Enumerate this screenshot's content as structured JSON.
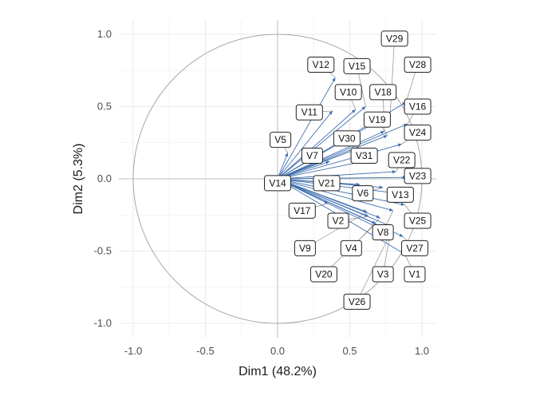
{
  "chart_data": {
    "type": "scatter",
    "subtype": "pca-variable-correlation-circle",
    "xlabel": "Dim1 (48.2%)",
    "ylabel": "Dim2 (5.3%)",
    "xlim": [
      -1.1,
      1.1
    ],
    "ylim": [
      -1.1,
      1.1
    ],
    "x_ticks": [
      -1.0,
      -0.5,
      0.0,
      0.5,
      1.0
    ],
    "y_ticks": [
      -1.0,
      -0.5,
      0.0,
      0.5,
      1.0
    ],
    "x_tick_labels": [
      "-1.0",
      "-0.5",
      "0.0",
      "0.5",
      "1.0"
    ],
    "y_tick_labels": [
      "-1.0",
      "-0.5",
      "0.0",
      "0.5",
      "1.0"
    ],
    "grid": true,
    "unit_circle": true,
    "arrow_color": "#3f6fb0",
    "circle_color": "#a6a6a6",
    "grid_color": "#ebebeb",
    "variables": [
      {
        "name": "V1",
        "x": 0.88,
        "y": -0.52,
        "label_x": 0.95,
        "label_y": -0.66
      },
      {
        "name": "V2",
        "x": 0.63,
        "y": -0.26,
        "label_x": 0.42,
        "label_y": -0.29
      },
      {
        "name": "V3",
        "x": 0.79,
        "y": -0.33,
        "label_x": 0.73,
        "label_y": -0.66
      },
      {
        "name": "V4",
        "x": 0.71,
        "y": -0.27,
        "label_x": 0.51,
        "label_y": -0.48
      },
      {
        "name": "V5",
        "x": 0.07,
        "y": 0.18,
        "label_x": 0.02,
        "label_y": 0.27
      },
      {
        "name": "V6",
        "x": 0.73,
        "y": -0.06,
        "label_x": 0.59,
        "label_y": -0.1
      },
      {
        "name": "V7",
        "x": 0.36,
        "y": 0.12,
        "label_x": 0.24,
        "label_y": 0.16
      },
      {
        "name": "V8",
        "x": 0.8,
        "y": -0.22,
        "label_x": 0.73,
        "label_y": -0.37
      },
      {
        "name": "V9",
        "x": 0.62,
        "y": -0.23,
        "label_x": 0.19,
        "label_y": -0.48
      },
      {
        "name": "V10",
        "x": 0.54,
        "y": 0.48,
        "label_x": 0.49,
        "label_y": 0.6
      },
      {
        "name": "V11",
        "x": 0.38,
        "y": 0.47,
        "label_x": 0.22,
        "label_y": 0.46
      },
      {
        "name": "V12",
        "x": 0.4,
        "y": 0.7,
        "label_x": 0.3,
        "label_y": 0.79
      },
      {
        "name": "V13",
        "x": 0.83,
        "y": -0.1,
        "label_x": 0.85,
        "label_y": -0.11
      },
      {
        "name": "V14",
        "x": 0.02,
        "y": -0.03,
        "label_x": 0.0,
        "label_y": -0.03
      },
      {
        "name": "V15",
        "x": 0.61,
        "y": 0.5,
        "label_x": 0.55,
        "label_y": 0.78
      },
      {
        "name": "V16",
        "x": 0.9,
        "y": 0.38,
        "label_x": 0.97,
        "label_y": 0.5
      },
      {
        "name": "V17",
        "x": 0.35,
        "y": -0.17,
        "label_x": 0.17,
        "label_y": -0.22
      },
      {
        "name": "V18",
        "x": 0.74,
        "y": 0.33,
        "label_x": 0.73,
        "label_y": 0.6
      },
      {
        "name": "V19",
        "x": 0.76,
        "y": 0.3,
        "label_x": 0.69,
        "label_y": 0.41
      },
      {
        "name": "V20",
        "x": 0.68,
        "y": -0.31,
        "label_x": 0.32,
        "label_y": -0.66
      },
      {
        "name": "V21",
        "x": 0.57,
        "y": -0.04,
        "label_x": 0.34,
        "label_y": -0.03
      },
      {
        "name": "V22",
        "x": 0.82,
        "y": 0.05,
        "label_x": 0.86,
        "label_y": 0.13
      },
      {
        "name": "V23",
        "x": 0.89,
        "y": 0.01,
        "label_x": 0.97,
        "label_y": 0.02
      },
      {
        "name": "V24",
        "x": 0.86,
        "y": 0.24,
        "label_x": 0.97,
        "label_y": 0.32
      },
      {
        "name": "V25",
        "x": 0.88,
        "y": -0.18,
        "label_x": 0.97,
        "label_y": -0.29
      },
      {
        "name": "V26",
        "x": 0.78,
        "y": -0.38,
        "label_x": 0.55,
        "label_y": -0.85
      },
      {
        "name": "V27",
        "x": 0.87,
        "y": -0.4,
        "label_x": 0.95,
        "label_y": -0.48
      },
      {
        "name": "V28",
        "x": 0.89,
        "y": 0.53,
        "label_x": 0.97,
        "label_y": 0.79
      },
      {
        "name": "V29",
        "x": 0.78,
        "y": 0.45,
        "label_x": 0.81,
        "label_y": 0.97
      },
      {
        "name": "V30",
        "x": 0.56,
        "y": 0.21,
        "label_x": 0.48,
        "label_y": 0.28
      },
      {
        "name": "V31",
        "x": 0.69,
        "y": 0.14,
        "label_x": 0.6,
        "label_y": 0.16
      }
    ]
  }
}
